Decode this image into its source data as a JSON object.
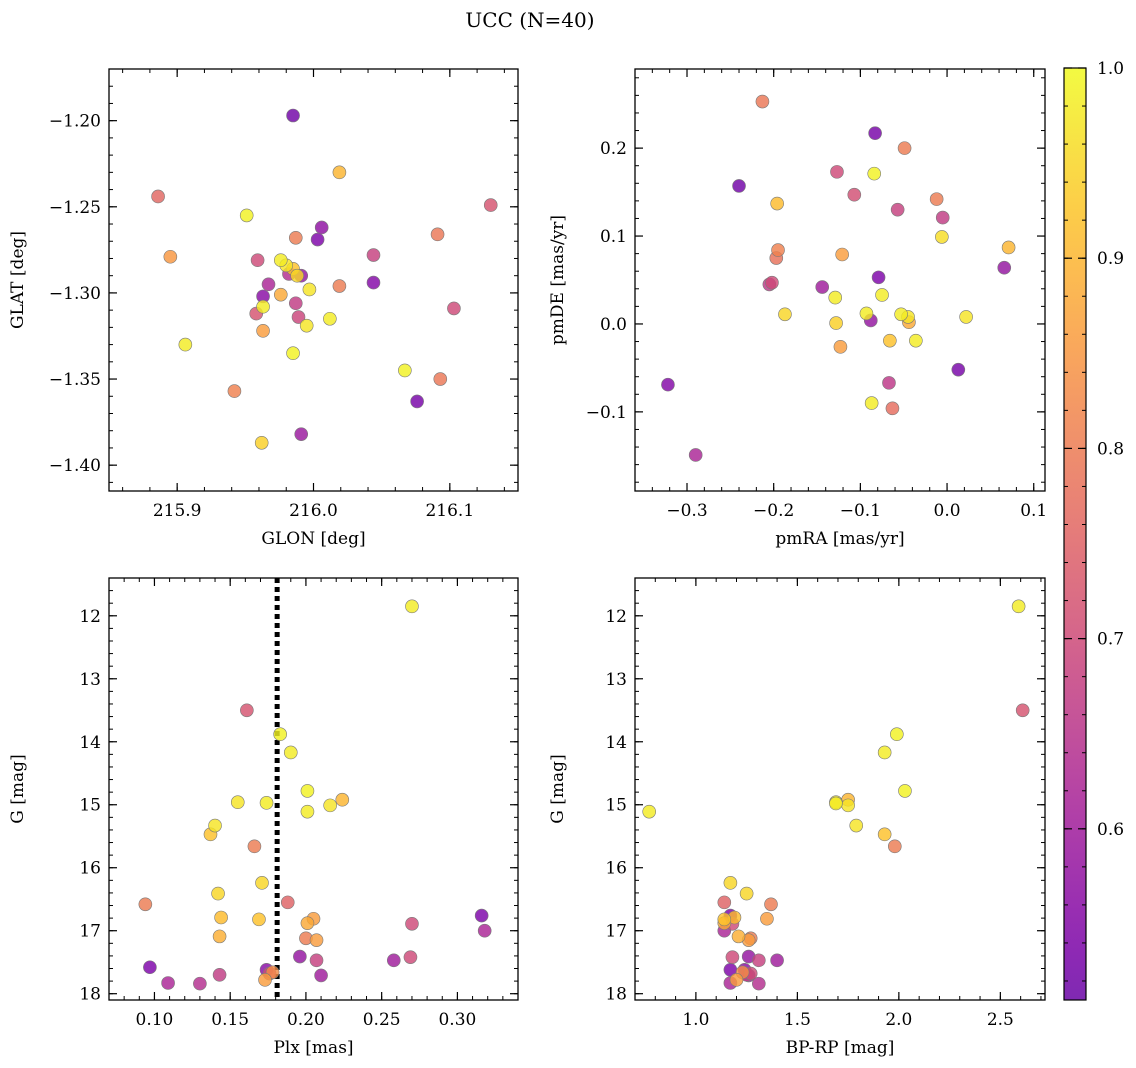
{
  "title": "UCC (N=40)",
  "colorbar": {
    "min": 0.51,
    "max": 1.0,
    "ticks": [
      0.6,
      0.7,
      0.8,
      0.9,
      1.0
    ],
    "tick_labels": [
      "0.6",
      "0.7",
      "0.8",
      "0.9",
      "1.0"
    ],
    "colormap": "plasma"
  },
  "chart_data": [
    {
      "type": "scatter",
      "xlabel": "GLON [deg]",
      "ylabel": "GLAT [deg]",
      "xlim": [
        215.85,
        216.15
      ],
      "ylim": [
        -1.415,
        -1.17
      ],
      "y_inverted": false,
      "xticks": [
        215.9,
        216.0,
        216.1
      ],
      "xtick_labels": [
        "215.9",
        "216.0",
        "216.1"
      ],
      "yticks": [
        -1.2,
        -1.25,
        -1.3,
        -1.35,
        -1.4
      ],
      "ytick_labels": [
        "−1.20",
        "−1.25",
        "−1.30",
        "−1.35",
        "−1.40"
      ],
      "vline": null,
      "points": [
        {
          "x": 215.985,
          "y": -1.197,
          "c": 0.52
        },
        {
          "x": 216.019,
          "y": -1.23,
          "c": 0.9
        },
        {
          "x": 215.886,
          "y": -1.244,
          "c": 0.76
        },
        {
          "x": 216.13,
          "y": -1.249,
          "c": 0.72
        },
        {
          "x": 215.951,
          "y": -1.255,
          "c": 0.99
        },
        {
          "x": 216.006,
          "y": -1.262,
          "c": 0.57
        },
        {
          "x": 216.091,
          "y": -1.266,
          "c": 0.79
        },
        {
          "x": 215.987,
          "y": -1.268,
          "c": 0.8
        },
        {
          "x": 216.003,
          "y": -1.269,
          "c": 0.54
        },
        {
          "x": 216.044,
          "y": -1.278,
          "c": 0.68
        },
        {
          "x": 215.895,
          "y": -1.279,
          "c": 0.85
        },
        {
          "x": 215.959,
          "y": -1.281,
          "c": 0.7
        },
        {
          "x": 215.976,
          "y": -1.281,
          "c": 0.98
        },
        {
          "x": 215.98,
          "y": -1.284,
          "c": 0.97
        },
        {
          "x": 215.985,
          "y": -1.286,
          "c": 0.92
        },
        {
          "x": 215.991,
          "y": -1.29,
          "c": 0.58
        },
        {
          "x": 215.988,
          "y": -1.29,
          "c": 0.95
        },
        {
          "x": 216.044,
          "y": -1.294,
          "c": 0.55
        },
        {
          "x": 216.019,
          "y": -1.296,
          "c": 0.8
        },
        {
          "x": 215.997,
          "y": -1.298,
          "c": 0.97
        },
        {
          "x": 215.963,
          "y": -1.302,
          "c": 0.56
        },
        {
          "x": 215.976,
          "y": -1.301,
          "c": 0.88
        },
        {
          "x": 215.987,
          "y": -1.306,
          "c": 0.67
        },
        {
          "x": 215.963,
          "y": -1.308,
          "c": 0.98
        },
        {
          "x": 216.103,
          "y": -1.309,
          "c": 0.7
        },
        {
          "x": 215.958,
          "y": -1.312,
          "c": 0.72
        },
        {
          "x": 215.989,
          "y": -1.314,
          "c": 0.69
        },
        {
          "x": 216.012,
          "y": -1.315,
          "c": 0.98
        },
        {
          "x": 215.995,
          "y": -1.319,
          "c": 0.97
        },
        {
          "x": 215.963,
          "y": -1.322,
          "c": 0.86
        },
        {
          "x": 215.906,
          "y": -1.33,
          "c": 0.98
        },
        {
          "x": 215.985,
          "y": -1.335,
          "c": 0.99
        },
        {
          "x": 216.067,
          "y": -1.345,
          "c": 0.99
        },
        {
          "x": 216.093,
          "y": -1.35,
          "c": 0.79
        },
        {
          "x": 215.942,
          "y": -1.357,
          "c": 0.81
        },
        {
          "x": 216.076,
          "y": -1.363,
          "c": 0.53
        },
        {
          "x": 215.991,
          "y": -1.382,
          "c": 0.59
        },
        {
          "x": 215.962,
          "y": -1.387,
          "c": 0.94
        },
        {
          "x": 215.967,
          "y": -1.295,
          "c": 0.62
        },
        {
          "x": 215.982,
          "y": -1.289,
          "c": 0.64
        }
      ]
    },
    {
      "type": "scatter",
      "xlabel": "pmRA [mas/yr]",
      "ylabel": "pmDE [mas/yr]",
      "xlim": [
        -0.36,
        0.113
      ],
      "ylim": [
        -0.19,
        0.29
      ],
      "y_inverted": false,
      "xticks": [
        -0.3,
        -0.2,
        -0.1,
        0.0,
        0.1
      ],
      "xtick_labels": [
        "−0.3",
        "−0.2",
        "−0.1",
        "0.0",
        "0.1"
      ],
      "yticks": [
        -0.1,
        0.0,
        0.1,
        0.2
      ],
      "ytick_labels": [
        "−0.1",
        "0.0",
        "0.1",
        "0.2"
      ],
      "vline": null,
      "points": [
        {
          "x": -0.213,
          "y": 0.253,
          "c": 0.79
        },
        {
          "x": -0.083,
          "y": 0.217,
          "c": 0.53
        },
        {
          "x": -0.049,
          "y": 0.2,
          "c": 0.8
        },
        {
          "x": -0.127,
          "y": 0.173,
          "c": 0.7
        },
        {
          "x": -0.084,
          "y": 0.171,
          "c": 0.99
        },
        {
          "x": -0.24,
          "y": 0.157,
          "c": 0.52
        },
        {
          "x": -0.107,
          "y": 0.147,
          "c": 0.71
        },
        {
          "x": -0.012,
          "y": 0.142,
          "c": 0.8
        },
        {
          "x": -0.196,
          "y": 0.137,
          "c": 0.91
        },
        {
          "x": -0.057,
          "y": 0.13,
          "c": 0.68
        },
        {
          "x": -0.005,
          "y": 0.121,
          "c": 0.67
        },
        {
          "x": -0.006,
          "y": 0.099,
          "c": 0.96
        },
        {
          "x": 0.071,
          "y": 0.087,
          "c": 0.9
        },
        {
          "x": -0.195,
          "y": 0.084,
          "c": 0.81
        },
        {
          "x": -0.121,
          "y": 0.079,
          "c": 0.86
        },
        {
          "x": -0.197,
          "y": 0.075,
          "c": 0.78
        },
        {
          "x": 0.066,
          "y": 0.064,
          "c": 0.58
        },
        {
          "x": -0.079,
          "y": 0.053,
          "c": 0.54
        },
        {
          "x": -0.202,
          "y": 0.047,
          "c": 0.7
        },
        {
          "x": -0.205,
          "y": 0.045,
          "c": 0.66
        },
        {
          "x": -0.144,
          "y": 0.042,
          "c": 0.6
        },
        {
          "x": -0.075,
          "y": 0.033,
          "c": 0.98
        },
        {
          "x": -0.129,
          "y": 0.03,
          "c": 0.98
        },
        {
          "x": -0.187,
          "y": 0.011,
          "c": 0.95
        },
        {
          "x": -0.093,
          "y": 0.012,
          "c": 0.98
        },
        {
          "x": -0.053,
          "y": 0.011,
          "c": 0.98
        },
        {
          "x": -0.045,
          "y": 0.008,
          "c": 0.97
        },
        {
          "x": 0.022,
          "y": 0.008,
          "c": 0.97
        },
        {
          "x": -0.088,
          "y": 0.004,
          "c": 0.58
        },
        {
          "x": -0.044,
          "y": 0.002,
          "c": 0.88
        },
        {
          "x": -0.128,
          "y": 0.001,
          "c": 0.94
        },
        {
          "x": -0.123,
          "y": -0.026,
          "c": 0.86
        },
        {
          "x": -0.066,
          "y": -0.019,
          "c": 0.92
        },
        {
          "x": -0.036,
          "y": -0.019,
          "c": 0.98
        },
        {
          "x": 0.013,
          "y": -0.052,
          "c": 0.53
        },
        {
          "x": -0.067,
          "y": -0.067,
          "c": 0.66
        },
        {
          "x": -0.322,
          "y": -0.069,
          "c": 0.55
        },
        {
          "x": -0.087,
          "y": -0.09,
          "c": 0.98
        },
        {
          "x": -0.063,
          "y": -0.096,
          "c": 0.77
        },
        {
          "x": -0.29,
          "y": -0.149,
          "c": 0.62
        }
      ]
    },
    {
      "type": "scatter",
      "xlabel": "Plx [mas]",
      "ylabel": "G [mag]",
      "xlim": [
        0.07,
        0.34
      ],
      "ylim": [
        11.4,
        18.1
      ],
      "y_inverted": true,
      "xticks": [
        0.1,
        0.15,
        0.2,
        0.25,
        0.3
      ],
      "xtick_labels": [
        "0.10",
        "0.15",
        "0.20",
        "0.25",
        "0.30"
      ],
      "yticks": [
        12,
        13,
        14,
        15,
        16,
        17,
        18
      ],
      "ytick_labels": [
        "12",
        "13",
        "14",
        "15",
        "16",
        "17",
        "18"
      ],
      "vline": {
        "x": 0.181,
        "style": "dotted"
      },
      "points": [
        {
          "x": 0.27,
          "y": 11.85,
          "c": 0.98
        },
        {
          "x": 0.161,
          "y": 13.5,
          "c": 0.72
        },
        {
          "x": 0.183,
          "y": 13.88,
          "c": 0.99
        },
        {
          "x": 0.19,
          "y": 14.17,
          "c": 0.98
        },
        {
          "x": 0.201,
          "y": 14.78,
          "c": 0.99
        },
        {
          "x": 0.224,
          "y": 14.92,
          "c": 0.9
        },
        {
          "x": 0.155,
          "y": 14.96,
          "c": 0.97
        },
        {
          "x": 0.174,
          "y": 14.97,
          "c": 0.98
        },
        {
          "x": 0.216,
          "y": 15.01,
          "c": 0.97
        },
        {
          "x": 0.201,
          "y": 15.11,
          "c": 0.98
        },
        {
          "x": 0.14,
          "y": 15.33,
          "c": 0.97
        },
        {
          "x": 0.137,
          "y": 15.47,
          "c": 0.92
        },
        {
          "x": 0.166,
          "y": 15.66,
          "c": 0.8
        },
        {
          "x": 0.171,
          "y": 16.24,
          "c": 0.95
        },
        {
          "x": 0.142,
          "y": 16.41,
          "c": 0.95
        },
        {
          "x": 0.094,
          "y": 16.58,
          "c": 0.8
        },
        {
          "x": 0.188,
          "y": 16.55,
          "c": 0.75
        },
        {
          "x": 0.144,
          "y": 16.79,
          "c": 0.91
        },
        {
          "x": 0.169,
          "y": 16.82,
          "c": 0.92
        },
        {
          "x": 0.205,
          "y": 16.81,
          "c": 0.86
        },
        {
          "x": 0.201,
          "y": 16.88,
          "c": 0.88
        },
        {
          "x": 0.27,
          "y": 16.89,
          "c": 0.7
        },
        {
          "x": 0.316,
          "y": 16.76,
          "c": 0.54
        },
        {
          "x": 0.318,
          "y": 17.0,
          "c": 0.62
        },
        {
          "x": 0.143,
          "y": 17.09,
          "c": 0.89
        },
        {
          "x": 0.2,
          "y": 17.12,
          "c": 0.8
        },
        {
          "x": 0.207,
          "y": 17.15,
          "c": 0.86
        },
        {
          "x": 0.196,
          "y": 17.41,
          "c": 0.58
        },
        {
          "x": 0.207,
          "y": 17.47,
          "c": 0.68
        },
        {
          "x": 0.258,
          "y": 17.47,
          "c": 0.6
        },
        {
          "x": 0.269,
          "y": 17.42,
          "c": 0.7
        },
        {
          "x": 0.097,
          "y": 17.58,
          "c": 0.54
        },
        {
          "x": 0.174,
          "y": 17.62,
          "c": 0.56
        },
        {
          "x": 0.178,
          "y": 17.66,
          "c": 0.83
        },
        {
          "x": 0.176,
          "y": 17.68,
          "c": 0.7
        },
        {
          "x": 0.143,
          "y": 17.7,
          "c": 0.67
        },
        {
          "x": 0.21,
          "y": 17.71,
          "c": 0.6
        },
        {
          "x": 0.173,
          "y": 17.78,
          "c": 0.86
        },
        {
          "x": 0.109,
          "y": 17.83,
          "c": 0.62
        },
        {
          "x": 0.13,
          "y": 17.84,
          "c": 0.64
        }
      ]
    },
    {
      "type": "scatter",
      "xlabel": "BP-RP [mag]",
      "ylabel": "G [mag]",
      "xlim": [
        0.7,
        2.72
      ],
      "ylim": [
        11.4,
        18.1
      ],
      "y_inverted": true,
      "xticks": [
        1.0,
        1.5,
        2.0,
        2.5
      ],
      "xtick_labels": [
        "1.0",
        "1.5",
        "2.0",
        "2.5"
      ],
      "yticks": [
        12,
        13,
        14,
        15,
        16,
        17,
        18
      ],
      "ytick_labels": [
        "12",
        "13",
        "14",
        "15",
        "16",
        "17",
        "18"
      ],
      "vline": null,
      "points": [
        {
          "x": 2.59,
          "y": 11.85,
          "c": 0.98
        },
        {
          "x": 2.61,
          "y": 13.5,
          "c": 0.72
        },
        {
          "x": 1.99,
          "y": 13.88,
          "c": 0.99
        },
        {
          "x": 1.93,
          "y": 14.17,
          "c": 0.98
        },
        {
          "x": 2.03,
          "y": 14.78,
          "c": 0.99
        },
        {
          "x": 1.75,
          "y": 14.92,
          "c": 0.9
        },
        {
          "x": 1.69,
          "y": 14.96,
          "c": 0.97
        },
        {
          "x": 1.69,
          "y": 14.98,
          "c": 0.98
        },
        {
          "x": 1.75,
          "y": 15.01,
          "c": 0.97
        },
        {
          "x": 0.77,
          "y": 15.11,
          "c": 0.98
        },
        {
          "x": 1.79,
          "y": 15.33,
          "c": 0.97
        },
        {
          "x": 1.93,
          "y": 15.47,
          "c": 0.92
        },
        {
          "x": 1.98,
          "y": 15.66,
          "c": 0.8
        },
        {
          "x": 1.17,
          "y": 16.24,
          "c": 0.95
        },
        {
          "x": 1.25,
          "y": 16.41,
          "c": 0.95
        },
        {
          "x": 1.37,
          "y": 16.58,
          "c": 0.8
        },
        {
          "x": 1.14,
          "y": 16.55,
          "c": 0.75
        },
        {
          "x": 1.19,
          "y": 16.79,
          "c": 0.91
        },
        {
          "x": 1.14,
          "y": 16.82,
          "c": 0.92
        },
        {
          "x": 1.35,
          "y": 16.81,
          "c": 0.86
        },
        {
          "x": 1.14,
          "y": 16.88,
          "c": 0.88
        },
        {
          "x": 1.18,
          "y": 16.89,
          "c": 0.7
        },
        {
          "x": 1.17,
          "y": 16.76,
          "c": 0.54
        },
        {
          "x": 1.14,
          "y": 17.0,
          "c": 0.62
        },
        {
          "x": 1.21,
          "y": 17.09,
          "c": 0.89
        },
        {
          "x": 1.27,
          "y": 17.12,
          "c": 0.8
        },
        {
          "x": 1.26,
          "y": 17.15,
          "c": 0.86
        },
        {
          "x": 1.26,
          "y": 17.41,
          "c": 0.58
        },
        {
          "x": 1.31,
          "y": 17.47,
          "c": 0.68
        },
        {
          "x": 1.4,
          "y": 17.47,
          "c": 0.6
        },
        {
          "x": 1.18,
          "y": 17.42,
          "c": 0.7
        },
        {
          "x": 1.17,
          "y": 17.62,
          "c": 0.54
        },
        {
          "x": 1.24,
          "y": 17.62,
          "c": 0.56
        },
        {
          "x": 1.23,
          "y": 17.66,
          "c": 0.83
        },
        {
          "x": 1.27,
          "y": 17.68,
          "c": 0.7
        },
        {
          "x": 1.25,
          "y": 17.7,
          "c": 0.67
        },
        {
          "x": 1.26,
          "y": 17.71,
          "c": 0.6
        },
        {
          "x": 1.2,
          "y": 17.78,
          "c": 0.86
        },
        {
          "x": 1.17,
          "y": 17.83,
          "c": 0.62
        },
        {
          "x": 1.31,
          "y": 17.84,
          "c": 0.64
        }
      ]
    }
  ]
}
